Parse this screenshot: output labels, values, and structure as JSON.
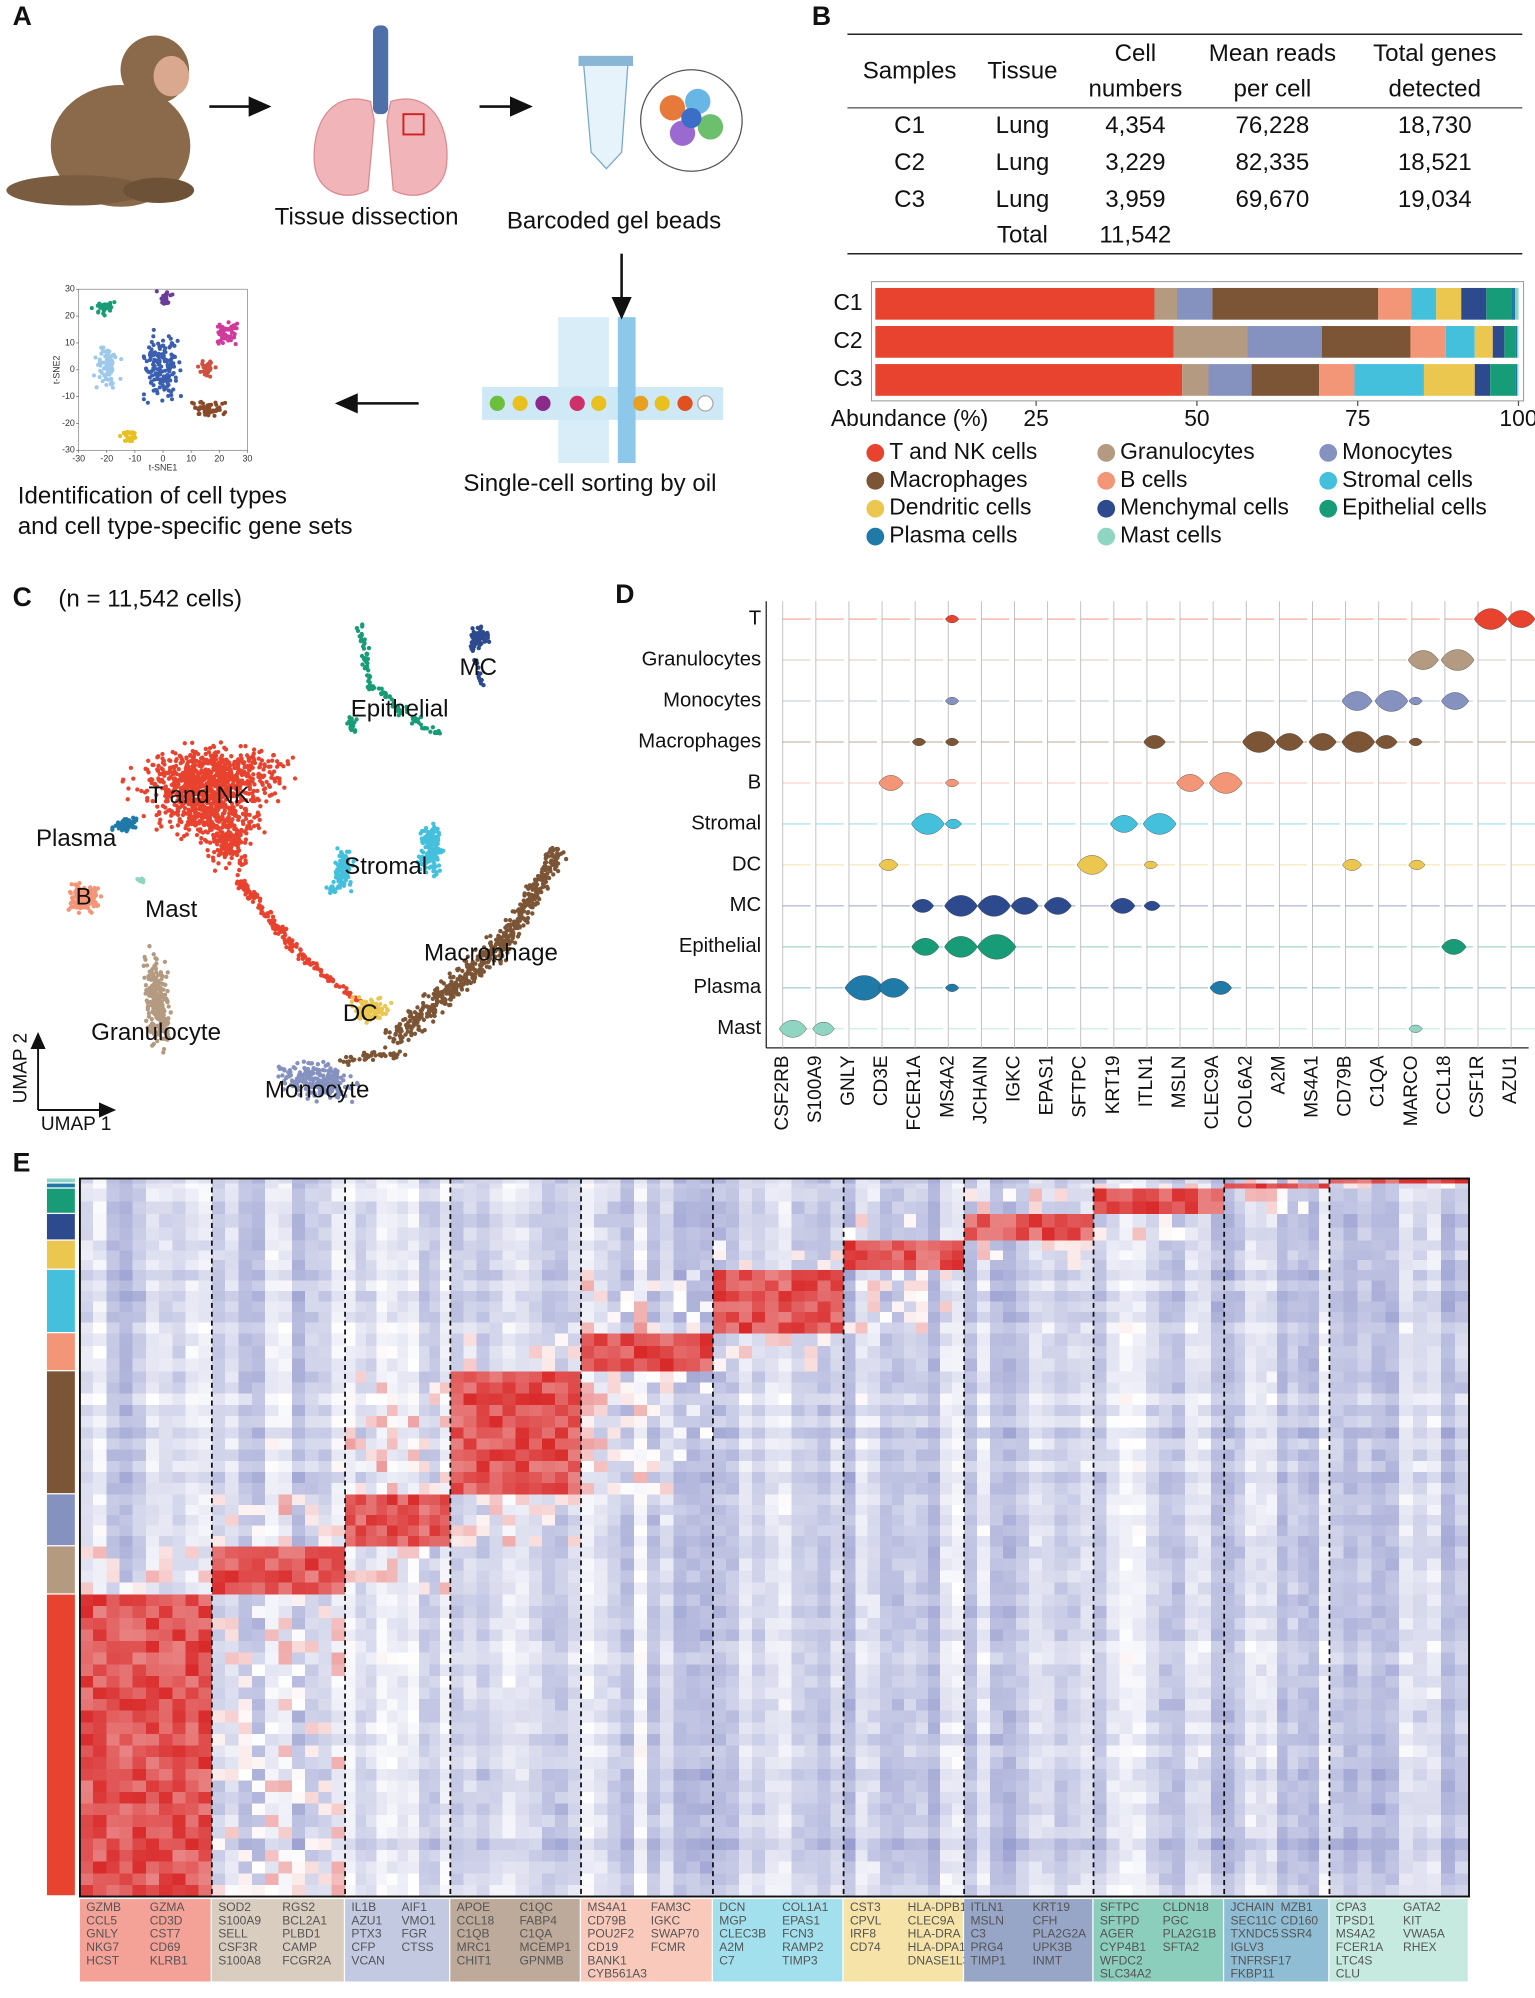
{
  "panel_labels": [
    "A",
    "B",
    "C",
    "D",
    "E"
  ],
  "panel_a": {
    "steps": [
      "Tissue dissection",
      "Barcoded gel beads",
      "Single-cell sorting by oil"
    ],
    "result": [
      "Identification of cell types",
      "and cell type-specific gene sets"
    ],
    "tsne": {
      "xlabel": "t-SNE1",
      "ylabel": "t-SNE2",
      "xlim": [
        -30,
        30
      ],
      "ylim": [
        -30,
        30
      ],
      "xticks": [
        -30,
        -20,
        -10,
        0,
        10,
        20,
        30
      ],
      "yticks": [
        -30,
        -20,
        -10,
        0,
        10,
        20,
        30
      ]
    }
  },
  "table": {
    "header": [
      [
        "Samples"
      ],
      [
        "Tissue"
      ],
      [
        "Cell",
        "numbers"
      ],
      [
        "Mean reads",
        "per cell"
      ],
      [
        "Total genes",
        "detected"
      ]
    ],
    "rows": [
      [
        "C1",
        "Lung",
        "4,354",
        "76,228",
        "18,730"
      ],
      [
        "C2",
        "Lung",
        "3,229",
        "82,335",
        "18,521"
      ],
      [
        "C3",
        "Lung",
        "3,959",
        "69,670",
        "19,034"
      ]
    ],
    "total": [
      "Total",
      "11,542"
    ]
  },
  "chart_data": {
    "type": "stacked_barh",
    "categories": [
      "C1",
      "C2",
      "C3"
    ],
    "xlabel": "Abundance (%)",
    "xlim": [
      0,
      100
    ],
    "xticks": [
      25,
      50,
      75,
      100
    ],
    "series": [
      {
        "name": "T and NK cells",
        "color": "#e8432e",
        "values": [
          43.4,
          46.4,
          47.7
        ]
      },
      {
        "name": "Granulocytes",
        "color": "#b39a80",
        "values": [
          3.5,
          11.4,
          4.1
        ]
      },
      {
        "name": "Monocytes",
        "color": "#8592c0",
        "values": [
          5.5,
          11.6,
          6.7
        ]
      },
      {
        "name": "Macrophages",
        "color": "#7b5535",
        "values": [
          25.8,
          13.8,
          10.5
        ]
      },
      {
        "name": "B cells",
        "color": "#f39577",
        "values": [
          5.1,
          5.5,
          5.5
        ]
      },
      {
        "name": "Stromal cells",
        "color": "#45c0dc",
        "values": [
          3.9,
          4.5,
          10.8
        ]
      },
      {
        "name": "Dendritic cells",
        "color": "#ebc750",
        "values": [
          3.9,
          2.8,
          7.9
        ]
      },
      {
        "name": "Menchymal cells",
        "color": "#2e4a8e",
        "values": [
          3.9,
          1.8,
          2.4
        ]
      },
      {
        "name": "Epithelial cells",
        "color": "#189c78",
        "values": [
          3.9,
          1.8,
          3.9
        ]
      },
      {
        "name": "Plasma cells",
        "color": "#1f7aa8",
        "values": [
          0.6,
          0.2,
          0.3
        ]
      },
      {
        "name": "Mast cells",
        "color": "#8fd5c1",
        "values": [
          0.5,
          0.2,
          0.2
        ]
      }
    ]
  },
  "umap": {
    "subtitle": "(n = 11,542 cells)",
    "labels": [
      "MC",
      "Epithelial",
      "T and NK",
      "Plasma",
      "Stromal",
      "B",
      "Mast",
      "Macrophage",
      "DC",
      "Granulocyte",
      "Monocyte"
    ],
    "xlabel": "UMAP 1",
    "ylabel": "UMAP 2"
  },
  "violin": {
    "cell_types": [
      "T",
      "Granulocytes",
      "Monocytes",
      "Macrophages",
      "B",
      "Stromal",
      "DC",
      "MC",
      "Epithelial",
      "Plasma",
      "Mast"
    ],
    "genes": [
      "CSF2RB",
      "S100A9",
      "GNLY",
      "CD3E",
      "FCER1A",
      "MS4A2",
      "JCHAIN",
      "IGKC",
      "EPAS1",
      "SFTPC",
      "KRT19",
      "ITLN1",
      "MSLN",
      "CLEC9A",
      "COL6A2",
      "A2M",
      "MS4A1",
      "CD79B",
      "C1QA",
      "MARCO",
      "CCL18",
      "CSF1R",
      "AZU1"
    ]
  },
  "heatmap": {
    "gene_sets": [
      [
        [
          "GZMB",
          "CCL5",
          "GNLY",
          "NKG7",
          "HCST"
        ],
        [
          "GZMA",
          "CD3D",
          "CST7",
          "CD69",
          "KLRB1"
        ]
      ],
      [
        [
          "SOD2",
          "S100A9",
          "SELL",
          "CSF3R",
          "S100A8"
        ],
        [
          "RGS2",
          "BCL2A1",
          "PLBD1",
          "CAMP",
          "FCGR2A"
        ]
      ],
      [
        [
          "IL1B",
          "AZU1",
          "PTX3",
          "CFP",
          "VCAN"
        ],
        [
          "AIF1",
          "VMO1",
          "FGR",
          "CTSS"
        ]
      ],
      [
        [
          "APOE",
          "CCL18",
          "C1QB",
          "MRC1",
          "CHIT1"
        ],
        [
          "C1QC",
          "FABP4",
          "C1QA",
          "MCEMP1",
          "GPNMB"
        ]
      ],
      [
        [
          "MS4A1",
          "CD79B",
          "POU2F2",
          "CD19",
          "BANK1",
          "CYB561A3"
        ],
        [
          "FAM3C",
          "IGKC",
          "SWAP70",
          "FCMR"
        ]
      ],
      [
        [
          "DCN",
          "MGP",
          "CLEC3B",
          "A2M",
          "C7"
        ],
        [
          "COL1A1",
          "EPAS1",
          "FCN3",
          "RAMP2",
          "TIMP3"
        ]
      ],
      [
        [
          "CST3",
          "CPVL",
          "IRF8",
          "CD74"
        ],
        [
          "HLA-DPB1",
          "CLEC9A",
          "HLA-DRA",
          "HLA-DPA1",
          "DNASE1L3"
        ]
      ],
      [
        [
          "ITLN1",
          "MSLN",
          "C3",
          "PRG4",
          "TIMP1"
        ],
        [
          "KRT19",
          "CFH",
          "PLA2G2A",
          "UPK3B",
          "INMT"
        ]
      ],
      [
        [
          "SFTPC",
          "SFTPD",
          "AGER",
          "CYP4B1",
          "WFDC2",
          "SLC34A2"
        ],
        [
          "CLDN18",
          "PGC",
          "PLA2G1B",
          "SFTA2"
        ]
      ],
      [
        [
          "JCHAIN",
          "SEC11C",
          "TXNDC5",
          "IGLV3",
          "TNFRSF17",
          "FKBP11"
        ],
        [
          "MZB1",
          "CD160",
          "SSR4"
        ]
      ],
      [
        [
          "CPA3",
          "TPSD1",
          "MS4A2",
          "FCER1A",
          "LTC4S",
          "CLU"
        ],
        [
          "GATA2",
          "KIT",
          "VWA5A",
          "RHEX"
        ]
      ]
    ]
  }
}
